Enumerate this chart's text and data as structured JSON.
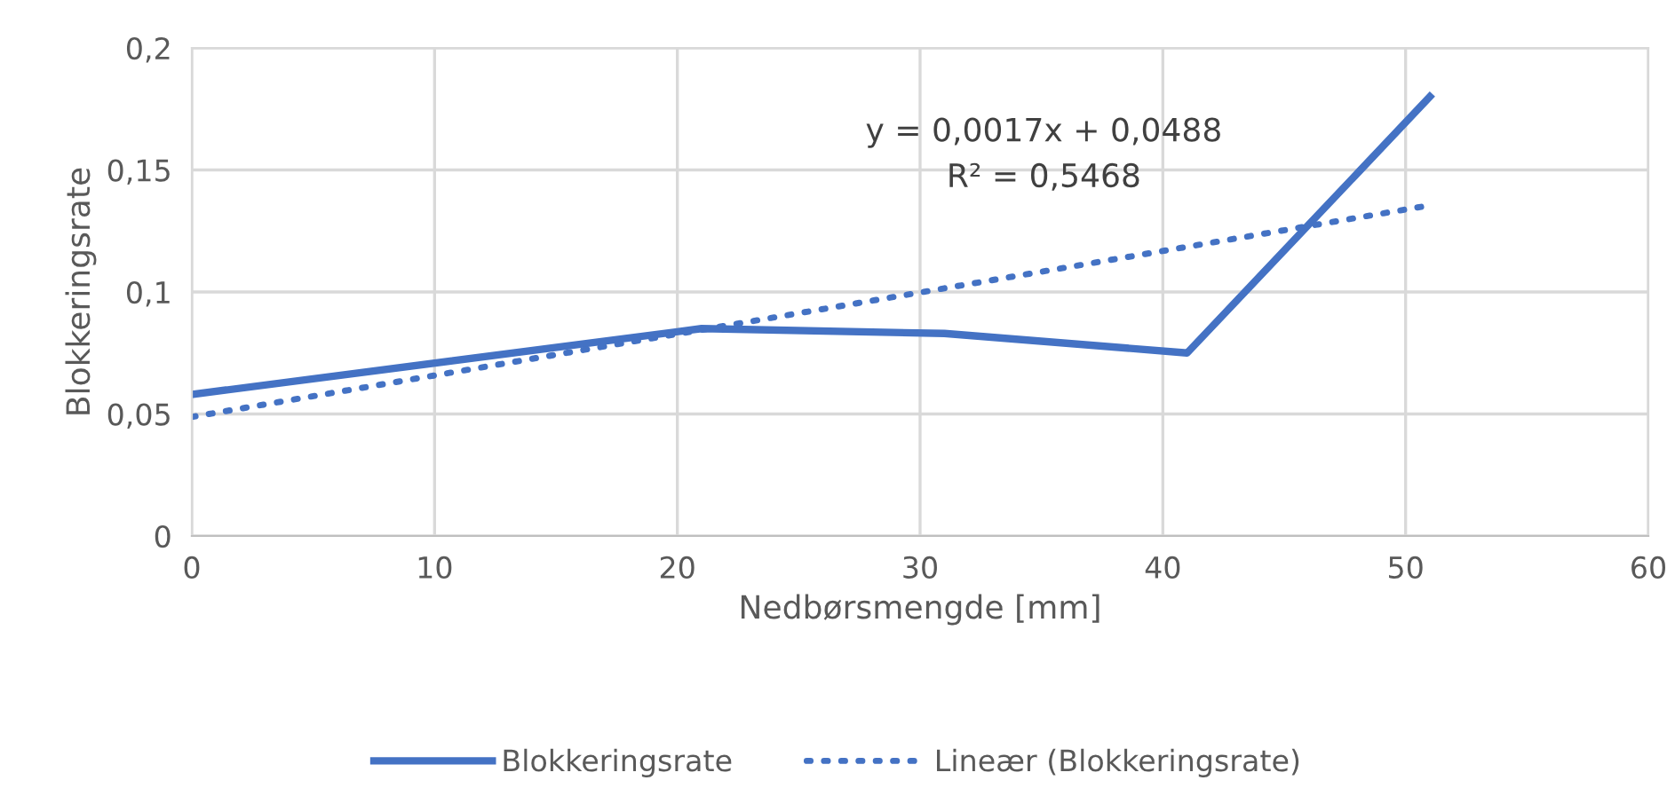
{
  "chart_data": {
    "type": "line",
    "xlabel": "Nedbørsmengde [mm]",
    "ylabel": "Blokkeringsrate",
    "series": [
      {
        "name": "Blokkeringsrate",
        "color": "#4472c4",
        "x": [
          0,
          21,
          31,
          41,
          51
        ],
        "values": [
          0.058,
          0.085,
          0.083,
          0.075,
          0.18
        ],
        "line_style": "solid"
      },
      {
        "name": "Lineær (Blokkeringsrate)",
        "color": "#4472c4",
        "x": [
          0,
          51
        ],
        "values": [
          0.0488,
          0.1355
        ],
        "line_style": "dotted"
      }
    ],
    "annotations": [
      "y = 0,0017x + 0,0488\nR² = 0,5468"
    ],
    "xlim": [
      0,
      60
    ],
    "xticks": [
      0,
      10,
      20,
      30,
      40,
      50,
      60
    ],
    "ylim": [
      0,
      0.2
    ],
    "yticks": [
      {
        "value": 0,
        "label": "0"
      },
      {
        "value": 0.05,
        "label": "0,05"
      },
      {
        "value": 0.1,
        "label": "0,1"
      },
      {
        "value": 0.15,
        "label": "0,15"
      },
      {
        "value": 0.2,
        "label": "0,2"
      }
    ],
    "grid": true,
    "legend": "bottom"
  }
}
